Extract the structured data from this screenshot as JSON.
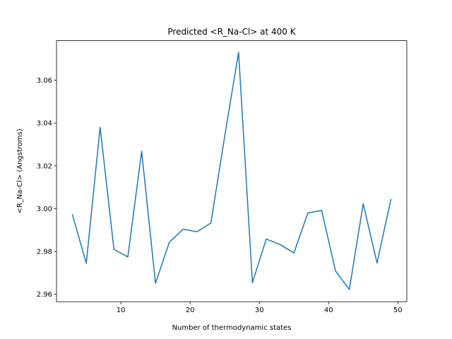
{
  "chart_data": {
    "type": "line",
    "title": "Predicted <R_Na-Cl> at 400 K",
    "xlabel": "Number of thermodynamic states",
    "ylabel": "<R_Na-Cl> (Angstroms)",
    "xlim": [
      0.7,
      51.3
    ],
    "ylim": [
      2.9565,
      3.0785
    ],
    "xticks": [
      10,
      20,
      30,
      40,
      50
    ],
    "yticks": [
      2.96,
      2.98,
      3.0,
      3.02,
      3.04,
      3.06
    ],
    "ytick_labels": [
      "2.96",
      "2.98",
      "3.00",
      "3.02",
      "3.04",
      "3.06"
    ],
    "grid": false,
    "series": [
      {
        "color": "#1f77b4",
        "x": [
          3,
          5,
          7,
          9,
          11,
          13,
          15,
          17,
          19,
          21,
          23,
          25,
          27,
          29,
          31,
          33,
          35,
          37,
          39,
          41,
          43,
          45,
          47,
          49
        ],
        "y": [
          2.9972,
          2.9744,
          3.038,
          2.981,
          2.9774,
          3.0268,
          2.9651,
          2.9843,
          2.9904,
          2.9892,
          2.9933,
          3.0339,
          3.0731,
          2.9654,
          2.9858,
          2.9832,
          2.9793,
          2.9979,
          2.9992,
          2.9709,
          2.9622,
          3.0023,
          2.9746,
          3.0043
        ]
      }
    ]
  }
}
